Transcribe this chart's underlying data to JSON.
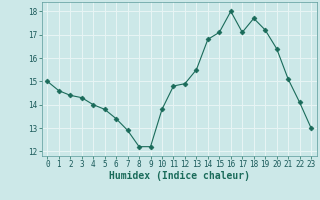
{
  "x": [
    0,
    1,
    2,
    3,
    4,
    5,
    6,
    7,
    8,
    9,
    10,
    11,
    12,
    13,
    14,
    15,
    16,
    17,
    18,
    19,
    20,
    21,
    22,
    23
  ],
  "y": [
    15.0,
    14.6,
    14.4,
    14.3,
    14.0,
    13.8,
    13.4,
    12.9,
    12.2,
    12.2,
    13.8,
    14.8,
    14.9,
    15.5,
    16.8,
    17.1,
    18.0,
    17.1,
    17.7,
    17.2,
    16.4,
    15.1,
    14.1,
    13.0
  ],
  "xlabel": "Humidex (Indice chaleur)",
  "ylim_min": 11.8,
  "ylim_max": 18.4,
  "xlim_min": -0.5,
  "xlim_max": 23.5,
  "bg_color": "#cce8e8",
  "line_color": "#1a6b5a",
  "marker_color": "#1a6b5a",
  "grid_color": "#e8f5f5",
  "yticks": [
    12,
    13,
    14,
    15,
    16,
    17,
    18
  ],
  "xticks": [
    0,
    1,
    2,
    3,
    4,
    5,
    6,
    7,
    8,
    9,
    10,
    11,
    12,
    13,
    14,
    15,
    16,
    17,
    18,
    19,
    20,
    21,
    22,
    23
  ],
  "xlabel_fontsize": 7,
  "tick_fontsize": 5.5
}
